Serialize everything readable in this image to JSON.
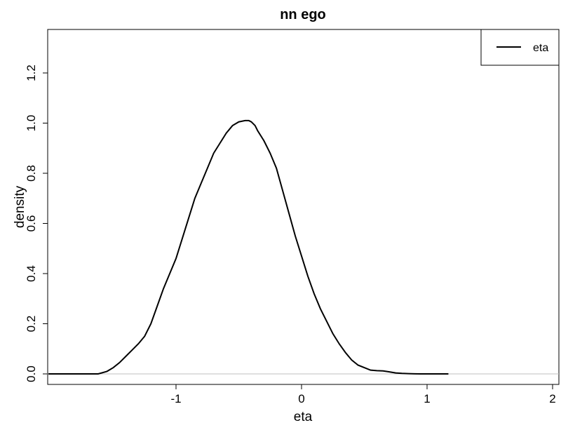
{
  "chart_data": {
    "type": "line",
    "title": "nn ego",
    "xlabel": "eta",
    "ylabel": "density",
    "xlim": [
      -2.0,
      2.0
    ],
    "ylim": [
      0.0,
      1.35
    ],
    "xticks": [
      "-1",
      "0",
      "1",
      "2"
    ],
    "xtick_values": [
      -1,
      0,
      1,
      2
    ],
    "yticks": [
      "0.0",
      "0.2",
      "0.4",
      "0.6",
      "0.8",
      "1.0",
      "1.2"
    ],
    "ytick_values": [
      0.0,
      0.2,
      0.4,
      0.6,
      0.8,
      1.0,
      1.2
    ],
    "legend_position": "top-right",
    "grid": false,
    "baseline_color": "#bfbfbf",
    "series": [
      {
        "name": "eta",
        "color": "#000000",
        "x": [
          -1.62,
          -1.55,
          -1.5,
          -1.45,
          -1.4,
          -1.35,
          -1.3,
          -1.25,
          -1.2,
          -1.15,
          -1.1,
          -1.05,
          -1.0,
          -0.95,
          -0.9,
          -0.85,
          -0.8,
          -0.75,
          -0.7,
          -0.65,
          -0.6,
          -0.55,
          -0.5,
          -0.45,
          -0.42,
          -0.4,
          -0.37,
          -0.35,
          -0.3,
          -0.25,
          -0.2,
          -0.15,
          -0.1,
          -0.05,
          0.0,
          0.05,
          0.1,
          0.15,
          0.2,
          0.25,
          0.3,
          0.35,
          0.4,
          0.45,
          0.5,
          0.55,
          0.6,
          0.65,
          0.7,
          0.75,
          0.8,
          0.85,
          0.9,
          0.95,
          1.0,
          1.05,
          1.1,
          1.17
        ],
        "y": [
          0.0,
          0.01,
          0.025,
          0.045,
          0.07,
          0.095,
          0.12,
          0.15,
          0.2,
          0.27,
          0.34,
          0.4,
          0.46,
          0.54,
          0.62,
          0.7,
          0.76,
          0.82,
          0.88,
          0.92,
          0.96,
          0.99,
          1.005,
          1.01,
          1.01,
          1.005,
          0.99,
          0.97,
          0.93,
          0.88,
          0.82,
          0.73,
          0.64,
          0.55,
          0.47,
          0.39,
          0.32,
          0.26,
          0.21,
          0.16,
          0.12,
          0.085,
          0.055,
          0.035,
          0.025,
          0.015,
          0.013,
          0.012,
          0.008,
          0.004,
          0.002,
          0.001,
          0.0005,
          0.0,
          0.0,
          0.0,
          0.0,
          0.0
        ]
      }
    ]
  }
}
